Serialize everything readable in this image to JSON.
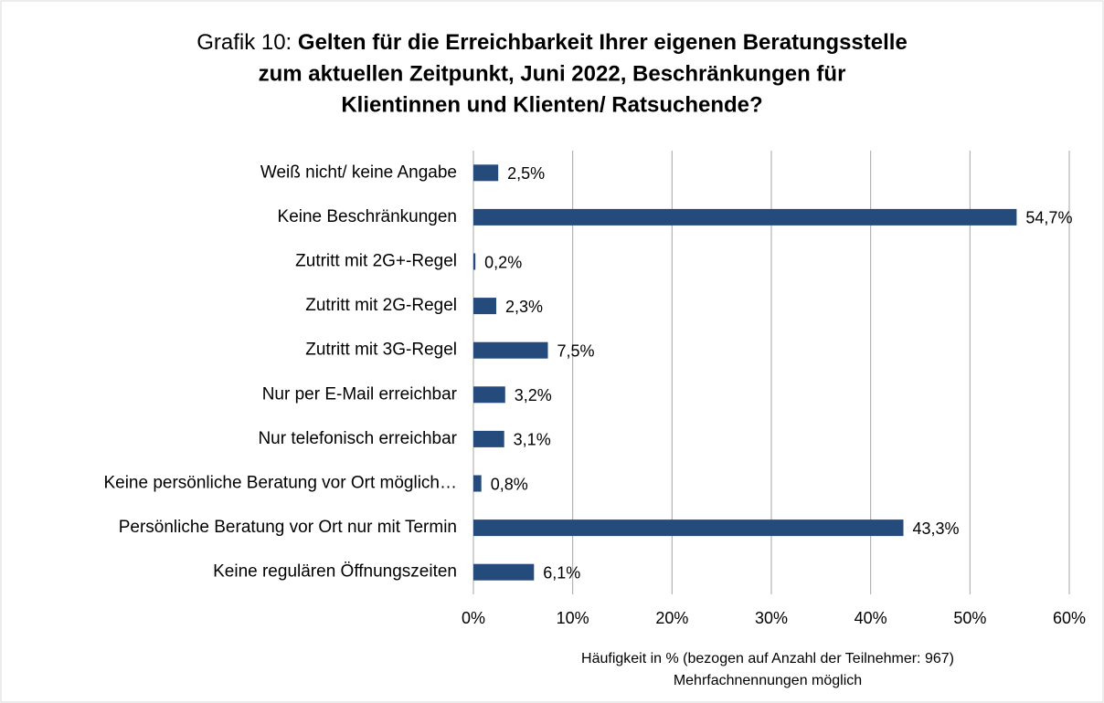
{
  "chart_data": {
    "type": "barh",
    "title": [
      "Grafik 10:",
      "Gelten für die Erreichbarkeit Ihrer eigenen Beratungsstelle",
      "zum aktuellen Zeitpunkt, Juni 2022, Beschränkungen für",
      "Klientinnen und Klienten/ Ratsuchende?"
    ],
    "categories": [
      "Weiß nicht/ keine Angabe",
      "Keine Beschränkungen",
      "Zutritt mit 2G+-Regel",
      "Zutritt mit 2G-Regel",
      "Zutritt mit 3G-Regel",
      "Nur per E-Mail erreichbar",
      "Nur telefonisch erreichbar",
      "Keine persönliche Beratung vor Ort möglich…",
      "Persönliche Beratung vor Ort nur mit Termin",
      "Keine regulären Öffnungszeiten"
    ],
    "values": [
      2.5,
      54.7,
      0.2,
      2.3,
      7.5,
      3.2,
      3.1,
      0.8,
      43.3,
      6.1
    ],
    "value_labels": [
      "2,5%",
      "54,7%",
      "0,2%",
      "2,3%",
      "7,5%",
      "3,2%",
      "3,1%",
      "0,8%",
      "43,3%",
      "6,1%"
    ],
    "color": "#254a7c",
    "xlim": [
      0,
      60
    ],
    "xticks": [
      {
        "value": 0,
        "label": "0%"
      },
      {
        "value": 10,
        "label": "10%"
      },
      {
        "value": 20,
        "label": "20%"
      },
      {
        "value": 30,
        "label": "30%"
      },
      {
        "value": 40,
        "label": "40%"
      },
      {
        "value": 50,
        "label": "50%"
      },
      {
        "value": 60,
        "label": "60%"
      }
    ],
    "xlabel": [
      "Häufigkeit in % (bezogen auf Anzahl der Teilnehmer: 967)",
      "Mehrfachnennungen möglich"
    ],
    "grid": true
  }
}
